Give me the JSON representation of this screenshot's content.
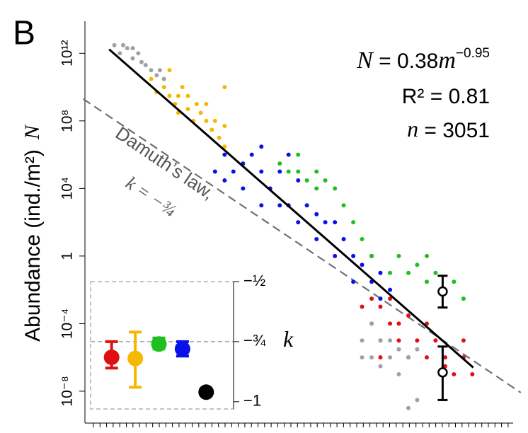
{
  "chart_data": [
    {
      "type": "scatter",
      "panel_label": "B",
      "ylabel": "Abundance  (ind./m²)",
      "ylabel_symbol": "N",
      "equation": [
        "N",
        " = 0.38",
        "m",
        "−0.95"
      ],
      "r_squared": "R² = 0.81",
      "sample_size": [
        "n",
        " = 3051"
      ],
      "reference_label": [
        "Damuth’s law,",
        "k = −¾"
      ],
      "log_x": true,
      "log_y": true,
      "xlim": [
        2.5e-15,
        500000000.0
      ],
      "ylim": [
        2.8e-10,
        79000000000000.0
      ],
      "yticks": [
        {
          "value": 1e-08,
          "label": "10⁻⁸"
        },
        {
          "value": 0.0001,
          "label": "10⁻⁴"
        },
        1,
        {
          "value": 10000.0,
          "label": "10⁴"
        },
        {
          "value": 100000000.0,
          "label": "10⁸"
        },
        {
          "value": 1000000000000.0,
          "label": "10¹²"
        }
      ],
      "series": [
        {
          "color": "#a0a0a0",
          "x": [
            1e-13,
            2e-13,
            5e-13,
            1e-12,
            2e-12,
            3e-12,
            5e-12,
            1e-11,
            2e-11,
            3e-11,
            5e-11,
            1e-12,
            3e-13
          ],
          "values": [
            3000000000000.0,
            1000000000000.0,
            2000000000000.0,
            500000000000.0,
            1000000000000.0,
            300000000000.0,
            200000000000.0,
            100000000000.0,
            50000000000.0,
            100000000000.0,
            30000000000.0,
            2000000000000.0,
            3000000000000.0
          ]
        },
        {
          "color": "#f5b800",
          "x": [
            1e-11,
            2e-11,
            5e-11,
            1e-10,
            1e-10,
            2e-10,
            3e-10,
            5e-10,
            1e-09,
            1e-09,
            2e-09,
            3e-09,
            5e-09,
            1e-08,
            1e-08,
            2e-08,
            3e-08,
            5e-08,
            1e-07,
            1e-07,
            3e-10,
            1e-07
          ],
          "values": [
            30000000000.0,
            5000000000.0,
            10000000000.0,
            3000000000.0,
            100000000000.0,
            1000000000.0,
            3000000000.0,
            10000000000.0,
            500000000.0,
            3000000000.0,
            100000000.0,
            1000000000.0,
            300000000.0,
            100000000.0,
            1000000000.0,
            30000000.0,
            100000000.0,
            10000000.0,
            3000000.0,
            50000000.0,
            300000000.0,
            10000000000.0
          ]
        },
        {
          "color": "#0a10e8",
          "x": [
            3e-08,
            1e-07,
            1e-07,
            3e-07,
            1e-06,
            1e-06,
            3e-06,
            1e-05,
            1e-05,
            3e-05,
            0.0001,
            0.0001,
            0.0003,
            0.001,
            0.001,
            0.003,
            0.01,
            0.01,
            0.03,
            0.1,
            0.1,
            0.3,
            1,
            1,
            3,
            10,
            10,
            30,
            100,
            30,
            1e-05,
            0.0003
          ],
          "values": [
            100000.0,
            30000.0,
            1000000.0,
            100000.0,
            300000.0,
            10000.0,
            1000000.0,
            100000.0,
            1000.0,
            10000.0,
            100000.0,
            1000.0,
            1000.0,
            30000.0,
            100,
            1000.0,
            300,
            10,
            100,
            1,
            100,
            10,
            1,
            0.03,
            0.3,
            1,
            0.03,
            0.1,
            0.01,
            0.003,
            3000000.0,
            1000000.0
          ]
        },
        {
          "color": "#1fbf1f",
          "x": [
            0.0001,
            0.0003,
            0.001,
            0.001,
            0.003,
            0.01,
            0.01,
            0.03,
            0.1,
            0.3,
            1,
            3,
            10,
            100,
            300,
            1000.0,
            10000.0,
            10000.0,
            30000.0,
            100000.0,
            300000.0,
            1000000.0,
            3000.0
          ],
          "values": [
            300000.0,
            100000.0,
            100000.0,
            1000000.0,
            30000.0,
            100000.0,
            10000.0,
            30000.0,
            10000.0,
            1000.0,
            100,
            10,
            1,
            0.1,
            1,
            0.1,
            0.03,
            1,
            0.1,
            0.01,
            0.03,
            0.003,
            0.3
          ]
        },
        {
          "color": "#e01010",
          "x": [
            3,
            10,
            10,
            30,
            30,
            100,
            100,
            300,
            300,
            1000.0,
            1000.0,
            3000.0,
            10000.0,
            10000.0,
            30000.0,
            100000.0,
            100000.0,
            300000.0,
            1000000.0,
            3000000.0,
            1000000.0,
            30
          ],
          "values": [
            0.001,
            0.003,
            0.0001,
            0.001,
            1e-05,
            0.0001,
            0.003,
            1e-05,
            0.0001,
            0.0003,
            1e-06,
            1e-05,
            1e-06,
            0.0001,
            1e-05,
            1e-06,
            3e-07,
            1e-07,
            1e-06,
            1e-07,
            1e-05,
            1e-06
          ]
        },
        {
          "color": "#a0a0a0",
          "x": [
            3,
            10,
            10,
            30,
            30,
            100,
            100,
            300,
            300,
            1000.0,
            3000.0,
            1000.0,
            3000.0,
            3
          ],
          "values": [
            1e-05,
            0.0001,
            1e-06,
            1e-05,
            3e-07,
            1e-06,
            1e-05,
            3e-06,
            1e-07,
            1e-06,
            3e-06,
            1e-09,
            3e-09,
            1e-06
          ]
        }
      ],
      "error_points": {
        "color": "#000000",
        "x": [
          73000.0,
          73000.0
        ],
        "values": [
          0.008,
          1.3e-07
        ],
        "low": [
          0.0009,
          3e-09
        ],
        "high": [
          0.068,
          4.4e-06
        ]
      },
      "fit_line": {
        "color": "#000000",
        "x": [
          5.2e-14,
          3400000.0
        ],
        "values": [
          1700000000000.0,
          2.5e-07
        ]
      },
      "reference_line": {
        "color": "#707070",
        "x": [
          2e-15,
          1300000000.0
        ],
        "values": [
          2000000000.0,
          8.3e-09
        ]
      }
    },
    {
      "type": "errorbar",
      "ylabel": "k",
      "categories": [
        null,
        null,
        null,
        null,
        null
      ],
      "values": [
        -0.815,
        -0.82,
        -0.76,
        -0.78,
        -0.96
      ],
      "low": [
        -0.86,
        -0.94,
        -0.78,
        -0.81,
        null
      ],
      "high": [
        -0.75,
        -0.71,
        -0.735,
        -0.75,
        null
      ],
      "colors": [
        "#e01010",
        "#f5b800",
        "#1fbf1f",
        "#0a10e8",
        "#000000"
      ],
      "ylim": [
        -1.03,
        -0.5
      ],
      "yticks": [
        {
          "value": -1,
          "label": "−1"
        },
        {
          "value": -0.75,
          "label": "−¾"
        },
        {
          "value": -0.5,
          "label": "−½"
        }
      ],
      "hline": -0.75
    }
  ]
}
